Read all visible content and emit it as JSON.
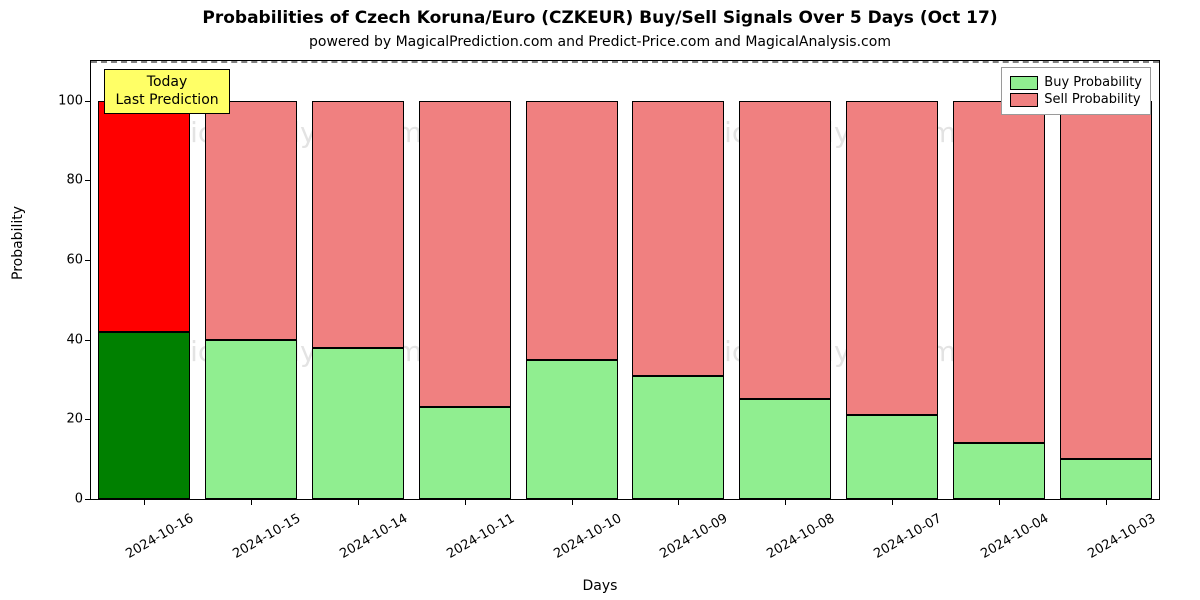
{
  "chart": {
    "type": "stacked-bar",
    "title": "Probabilities of Czech Koruna/Euro (CZKEUR) Buy/Sell Signals Over 5 Days (Oct 17)",
    "title_fontsize": 17,
    "subtitle": "powered by MagicalPrediction.com and Predict-Price.com and MagicalAnalysis.com",
    "subtitle_fontsize": 14,
    "xlabel": "Days",
    "ylabel": "Probability",
    "label_fontsize": 14,
    "background_color": "#ffffff",
    "axes_border_color": "#000000",
    "ylim": [
      0,
      110
    ],
    "ytick_positions": [
      0,
      20,
      40,
      60,
      80,
      100
    ],
    "ytick_labels": [
      "0",
      "20",
      "40",
      "60",
      "80",
      "100"
    ],
    "categories": [
      "2024-10-16",
      "2024-10-15",
      "2024-10-14",
      "2024-10-11",
      "2024-10-10",
      "2024-10-09",
      "2024-10-08",
      "2024-10-07",
      "2024-10-04",
      "2024-10-03"
    ],
    "xtick_rotation_deg": 30,
    "bar_width": 0.86,
    "bar_border_color": "#000000",
    "buy_values": [
      42,
      40,
      38,
      23,
      35,
      31,
      25,
      21,
      14,
      10
    ],
    "sell_values": [
      58,
      60,
      62,
      77,
      65,
      69,
      75,
      79,
      86,
      90
    ],
    "buy_colors": [
      "#008000",
      "#90ee90",
      "#90ee90",
      "#90ee90",
      "#90ee90",
      "#90ee90",
      "#90ee90",
      "#90ee90",
      "#90ee90",
      "#90ee90"
    ],
    "sell_colors": [
      "#ff0000",
      "#f08080",
      "#f08080",
      "#f08080",
      "#f08080",
      "#f08080",
      "#f08080",
      "#f08080",
      "#f08080",
      "#f08080"
    ],
    "reference_line": {
      "y": 110,
      "color": "#808080",
      "dash": "6,6",
      "width": 2
    },
    "today_annotation": {
      "line1": "Today",
      "line2": "Last Prediction",
      "bg_color": "#ffff66",
      "border_color": "#000000",
      "target_category_index": 0
    },
    "legend": {
      "position": "top-right",
      "items": [
        {
          "label": "Buy Probability",
          "color": "#90ee90"
        },
        {
          "label": "Sell Probability",
          "color": "#f08080"
        }
      ]
    },
    "watermark": {
      "text": "MagicalAnalysis.com",
      "color": "#b0b0b0",
      "opacity": 0.35,
      "fontsize": 28,
      "rows": 2,
      "cols": 2
    }
  }
}
